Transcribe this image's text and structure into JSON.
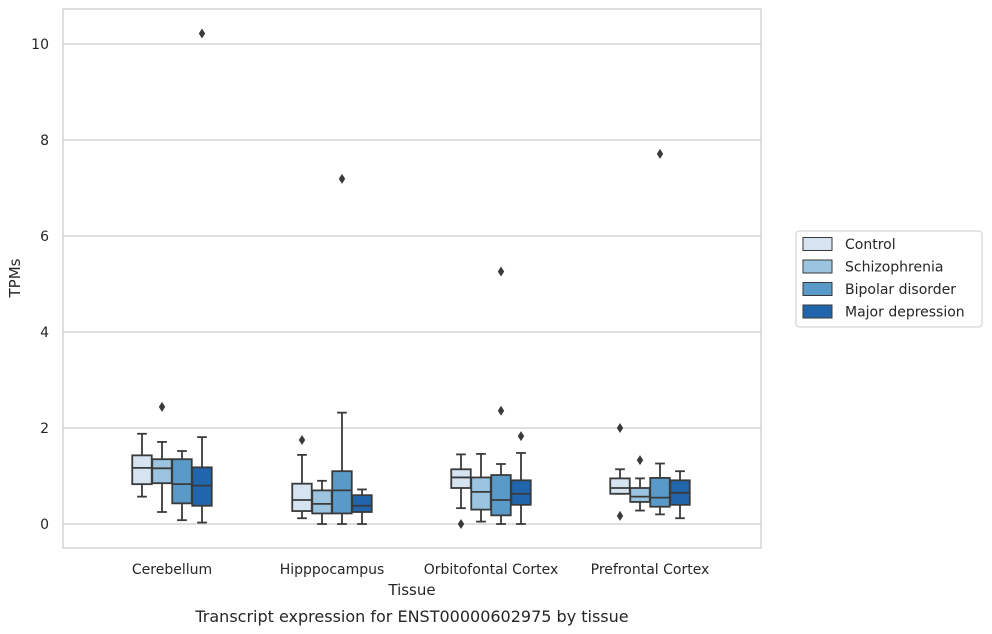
{
  "chart_data": {
    "type": "box",
    "title": "",
    "caption": "Transcript expression for ENST00000602975 by tissue",
    "xlabel": "Tissue",
    "ylabel": "TPMs",
    "ylim": [
      -0.5,
      10.7
    ],
    "yticks": [
      0,
      2,
      4,
      6,
      8,
      10
    ],
    "grid": "horizontal",
    "legend_position": "right",
    "categories": [
      "Cerebellum",
      "Hipppocampus",
      "Orbitofontal Cortex",
      "Prefrontal Cortex"
    ],
    "series": [
      {
        "name": "Control",
        "color": "#d6e4f1",
        "boxes": [
          {
            "whislo": 0.57,
            "q1": 0.83,
            "med": 1.17,
            "q3": 1.43,
            "whishi": 1.88,
            "fliers": []
          },
          {
            "whislo": 0.12,
            "q1": 0.27,
            "med": 0.5,
            "q3": 0.84,
            "whishi": 1.44,
            "fliers": [
              1.75
            ]
          },
          {
            "whislo": 0.33,
            "q1": 0.75,
            "med": 0.97,
            "q3": 1.14,
            "whishi": 1.45,
            "fliers": [
              0.0
            ]
          },
          {
            "whislo": 0.63,
            "q1": 0.63,
            "med": 0.75,
            "q3": 0.95,
            "whishi": 1.14,
            "fliers": [
              0.17,
              2.0
            ]
          }
        ]
      },
      {
        "name": "Schizophrenia",
        "color": "#9ac4df",
        "boxes": [
          {
            "whislo": 0.25,
            "q1": 0.85,
            "med": 1.16,
            "q3": 1.35,
            "whishi": 1.71,
            "fliers": [
              2.44
            ]
          },
          {
            "whislo": 0.0,
            "q1": 0.22,
            "med": 0.42,
            "q3": 0.7,
            "whishi": 0.9,
            "fliers": []
          },
          {
            "whislo": 0.05,
            "q1": 0.3,
            "med": 0.67,
            "q3": 0.97,
            "whishi": 1.46,
            "fliers": []
          },
          {
            "whislo": 0.28,
            "q1": 0.46,
            "med": 0.57,
            "q3": 0.75,
            "whishi": 0.95,
            "fliers": [
              1.33
            ]
          }
        ]
      },
      {
        "name": "Bipolar disorder",
        "color": "#5a9ac8",
        "boxes": [
          {
            "whislo": 0.08,
            "q1": 0.43,
            "med": 0.83,
            "q3": 1.35,
            "whishi": 1.52,
            "fliers": []
          },
          {
            "whislo": 0.0,
            "q1": 0.22,
            "med": 0.7,
            "q3": 1.1,
            "whishi": 2.32,
            "fliers": [
              7.19
            ]
          },
          {
            "whislo": 0.0,
            "q1": 0.18,
            "med": 0.5,
            "q3": 1.02,
            "whishi": 1.25,
            "fliers": [
              2.36,
              5.26
            ]
          },
          {
            "whislo": 0.2,
            "q1": 0.36,
            "med": 0.55,
            "q3": 0.96,
            "whishi": 1.26,
            "fliers": [
              7.71
            ]
          }
        ]
      },
      {
        "name": "Major depression",
        "color": "#2166ac",
        "boxes": [
          {
            "whislo": 0.03,
            "q1": 0.38,
            "med": 0.8,
            "q3": 1.18,
            "whishi": 1.81,
            "fliers": [
              10.22
            ]
          },
          {
            "whislo": 0.0,
            "q1": 0.25,
            "med": 0.38,
            "q3": 0.6,
            "whishi": 0.72,
            "fliers": []
          },
          {
            "whislo": 0.0,
            "q1": 0.4,
            "med": 0.63,
            "q3": 0.91,
            "whishi": 1.48,
            "fliers": [
              1.83
            ]
          },
          {
            "whislo": 0.12,
            "q1": 0.4,
            "med": 0.65,
            "q3": 0.91,
            "whishi": 1.1,
            "fliers": []
          }
        ]
      }
    ]
  }
}
